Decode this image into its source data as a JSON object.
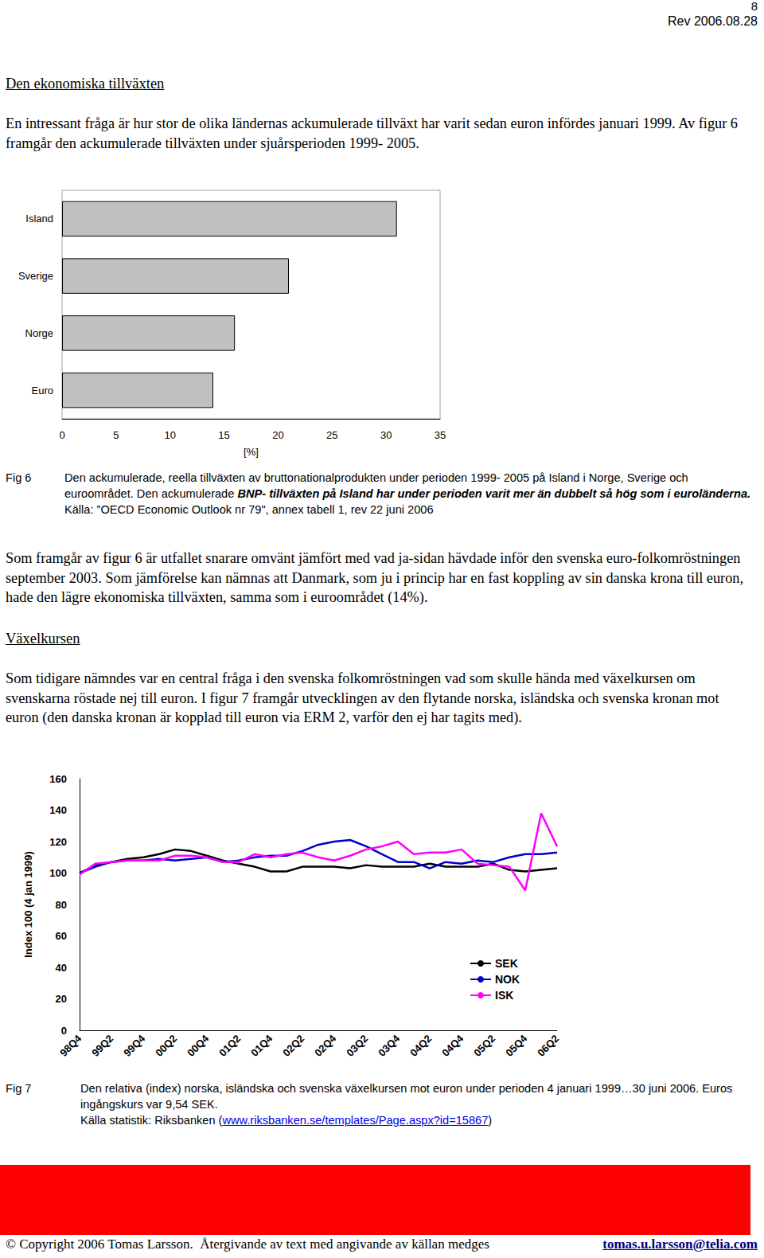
{
  "header": {
    "page_number": "8",
    "revision": "Rev 2006.08.28"
  },
  "heading_growth": "Den ekonomiska tillväxten",
  "paragraph_growth": "En intressant fråga är hur stor de olika ländernas ackumulerade tillväxt har varit sedan euron infördes januari 1999. Av figur 6 framgår den ackumulerade tillväxten under sjuårsperioden 1999- 2005.",
  "fig6": {
    "label": "Fig 6",
    "caption": "Den ackumulerade, reella tillväxten av bruttonationalprodukten under perioden 1999- 2005 på Island i Norge, Sverige och euroområdet. Den ackumulerade ",
    "caption_emphasis": "BNP- tillväxten på Island har under perioden varit mer än dubbelt så hög som i euroländerna.",
    "source": "Källa: ”OECD Economic Outlook nr 79\", annex tabell 1, rev 22 juni 2006"
  },
  "paragraph_result": "Som framgår av figur 6 är utfallet snarare omvänt jämfört med vad ja-sidan hävdade inför den svenska euro-folkomröstningen september 2003. Som jämförelse kan nämnas att Danmark, som ju i princip har en fast koppling av sin danska krona till euron, hade den lägre ekonomiska tillväxten, samma som i euroområdet (14%).",
  "heading_exchange": "Växelkursen",
  "paragraph_exchange": "Som tidigare nämndes var en central fråga i den svenska folkomröstningen vad som skulle hända med växelkursen om svenskarna röstade nej till euron. I figur 7 framgår utvecklingen av den flytande norska, isländska och svenska kronan mot euron (den danska kronan är kopplad till euron via ERM 2, varför den ej har tagits med).",
  "fig7": {
    "label": "Fig 7",
    "caption": "Den relativa (index) norska, isländska och svenska växelkursen mot euron under perioden 4 januari 1999…30 juni 2006. Euros ingångskurs var 9,54 SEK.",
    "source_prefix": "Källa statistik: Riksbanken (",
    "source_link": "www.riksbanken.se/templates/Page.aspx?id=15867",
    "source_suffix": ")"
  },
  "footer": {
    "copyright": "© Copyright 2006 Tomas Larsson.  Återgivande av text med angivande av källan medges",
    "email": "tomas.u.larsson@telia.com"
  },
  "chart_data": [
    {
      "type": "bar",
      "orientation": "horizontal",
      "categories": [
        "Island",
        "Sverige",
        "Norge",
        "Euro"
      ],
      "values": [
        31,
        21,
        16,
        14
      ],
      "color": "#c0c0c0",
      "xlabel": "[%]",
      "xlim": [
        0,
        35
      ],
      "xticks": [
        0,
        5,
        10,
        15,
        20,
        25,
        30,
        35
      ],
      "grid": false
    },
    {
      "type": "line",
      "ylabel": "Index 100 (4 jan 1999)",
      "categories": [
        "98Q4",
        null,
        "99Q2",
        null,
        "99Q4",
        null,
        "00Q2",
        null,
        "00Q4",
        null,
        "01Q2",
        null,
        "01Q4",
        null,
        "02Q2",
        null,
        "02Q4",
        null,
        "03Q2",
        null,
        "03Q4",
        null,
        "04Q2",
        null,
        "04Q4",
        null,
        "05Q2",
        null,
        "05Q4",
        null,
        "06Q2"
      ],
      "series": [
        {
          "name": "SEK",
          "color": "#000000",
          "values": [
            100,
            105,
            107,
            109,
            110,
            112,
            115,
            114,
            111,
            108,
            106,
            104,
            101,
            101,
            104,
            104,
            104,
            103,
            105,
            104,
            104,
            104,
            106,
            104,
            104,
            104,
            106,
            102,
            101,
            102,
            103
          ]
        },
        {
          "name": "NOK",
          "color": "#0000cc",
          "values": [
            100,
            104,
            107,
            108,
            108,
            109,
            108,
            109,
            110,
            107,
            108,
            110,
            111,
            111,
            114,
            118,
            120,
            121,
            117,
            112,
            107,
            107,
            103,
            107,
            106,
            108,
            107,
            110,
            112,
            112,
            113
          ]
        },
        {
          "name": "ISK",
          "color": "#ff00ff",
          "values": [
            99,
            106,
            107,
            108,
            108,
            108,
            111,
            111,
            110,
            107,
            107,
            112,
            110,
            112,
            113,
            110,
            108,
            111,
            115,
            117,
            120,
            112,
            113,
            113,
            115,
            106,
            105,
            104,
            89,
            138,
            117
          ]
        }
      ],
      "ylim": [
        0,
        160
      ],
      "yticks": [
        0,
        20,
        40,
        60,
        80,
        100,
        120,
        140,
        160
      ],
      "legend": "lower right",
      "grid": false
    }
  ]
}
